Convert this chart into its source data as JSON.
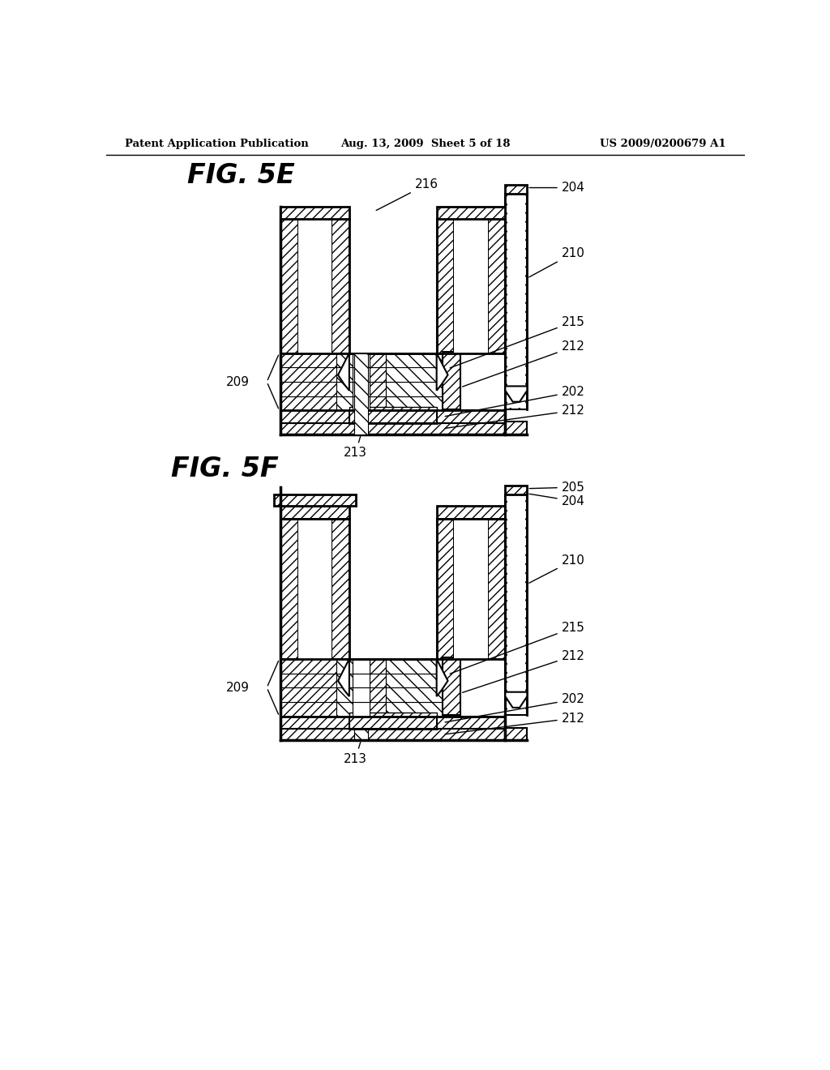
{
  "header_left": "Patent Application Publication",
  "header_mid": "Aug. 13, 2009  Sheet 5 of 18",
  "header_right": "US 2009/0200679 A1",
  "fig5e_label": "FIG. 5E",
  "fig5f_label": "FIG. 5F",
  "bg_color": "#ffffff",
  "line_color": "#000000"
}
